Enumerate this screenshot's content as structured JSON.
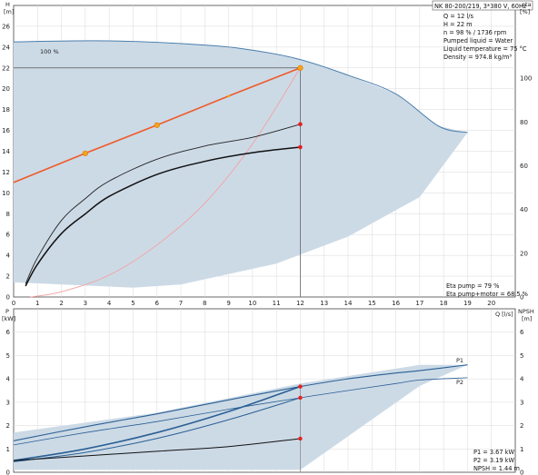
{
  "pump": {
    "header": "NK 80-200/219, 3*380 V, 60Hz",
    "info": [
      "Q = 12 l/s",
      "H = 22 m",
      "n = 98 % / 1736 rpm",
      "Pumped liquid = Water",
      "Liquid temperature = 75 °C",
      "Density = 974.8 kg/m³"
    ],
    "eta_info": [
      "Eta pump = 79 %",
      "Eta pump+motor = 68.5 %"
    ],
    "power_info": [
      "P1 = 3.67 kW",
      "P2 = 3.19 kW",
      "NPSH = 1.44 m"
    ],
    "curve_100_label": "100 %",
    "p1_label": "P1",
    "p2_label": "P2"
  },
  "colors": {
    "envelope_fill": "#ccdae6",
    "envelope_edge": "#4a7eac",
    "system_line": "#f05a28",
    "system_curve": "#f5a0a0",
    "marker": "#f7a21b",
    "op_point": "#e81f1f",
    "power_curve": "#2a5f94",
    "grid": "#d9d9d9"
  },
  "chart_data": [
    {
      "type": "line",
      "name": "head-efficiency",
      "ylabel_left": "H\n[m]",
      "ylabel_right": "eta\n[%]",
      "xlabel": "Q [l/s]",
      "xlim": [
        0,
        21
      ],
      "ylim": [
        0,
        28
      ],
      "xticks": [
        0,
        1,
        2,
        3,
        4,
        5,
        6,
        7,
        8,
        9,
        10,
        11,
        12,
        13,
        14,
        15,
        16,
        17,
        18,
        19,
        20
      ],
      "yticks_left": [
        0,
        2,
        4,
        6,
        8,
        10,
        12,
        14,
        16,
        18,
        20,
        22,
        24,
        26
      ],
      "yticks_right": [
        0,
        20,
        40,
        60,
        80,
        100
      ],
      "eta_scale_max": 133.3,
      "envelope_top": [
        [
          0,
          24.5
        ],
        [
          4,
          24.6
        ],
        [
          8,
          24.2
        ],
        [
          10,
          23.7
        ],
        [
          12,
          22.8
        ],
        [
          14,
          21.3
        ],
        [
          16,
          19.5
        ],
        [
          17.8,
          16.4
        ],
        [
          19,
          15.8
        ]
      ],
      "envelope_bottom": [
        [
          19,
          15.8
        ],
        [
          17,
          9.6
        ],
        [
          14,
          5.8
        ],
        [
          11,
          3.2
        ],
        [
          7,
          1.2
        ],
        [
          5,
          0.9
        ],
        [
          0,
          1.4
        ]
      ],
      "series": [
        {
          "name": "",
          "kind": "system-line",
          "x": [
            0,
            3,
            6,
            9,
            12
          ],
          "y": [
            11,
            13.8,
            16.5,
            19.3,
            22
          ]
        },
        {
          "name": "",
          "kind": "system-curve",
          "x": [
            0.7,
            2,
            4,
            6,
            8,
            10,
            12
          ],
          "y": [
            0,
            0.5,
            2.1,
            5.0,
            9.0,
            14.7,
            22
          ]
        },
        {
          "name": "",
          "kind": "eta-pump",
          "x": [
            0.5,
            1,
            2,
            3,
            4,
            6,
            8,
            10,
            12
          ],
          "y": [
            6,
            18,
            35,
            45,
            53,
            63,
            69,
            73,
            79
          ]
        },
        {
          "name": "",
          "kind": "eta-pump-motor",
          "x": [
            0.5,
            1,
            2,
            3,
            4,
            6,
            8,
            10,
            12
          ],
          "y": [
            5,
            15,
            29,
            38,
            46,
            56,
            62,
            66,
            68.5
          ]
        }
      ],
      "markers": [
        3,
        6,
        12
      ],
      "operating_point": {
        "q": 12,
        "h": 22,
        "eta_pump": 79,
        "eta_pump_motor": 68.5
      }
    },
    {
      "type": "line",
      "name": "power-npsh",
      "ylabel_left": "P\n[kW]",
      "ylabel_right": "NPSH\n[m]",
      "xlim": [
        0,
        21
      ],
      "ylim": [
        0,
        7
      ],
      "yticks_left": [
        0,
        1,
        2,
        3,
        4,
        5,
        6
      ],
      "yticks_right": [
        0,
        1,
        2,
        3,
        4,
        5,
        6
      ],
      "envelope_top": [
        [
          0,
          1.7
        ],
        [
          6,
          2.55
        ],
        [
          12,
          3.8
        ],
        [
          17,
          4.6
        ],
        [
          19,
          4.6
        ]
      ],
      "envelope_bottom": [
        [
          19,
          4.6
        ],
        [
          17,
          3.7
        ],
        [
          12,
          0.1
        ],
        [
          0,
          0.1
        ]
      ],
      "series": [
        {
          "name": "P1",
          "x": [
            0,
            3,
            6,
            9,
            12,
            14,
            16,
            17,
            19
          ],
          "y": [
            1.35,
            1.95,
            2.5,
            3.1,
            3.67,
            4.0,
            4.25,
            4.35,
            4.6
          ]
        },
        {
          "name": "P2",
          "x": [
            0,
            3,
            6,
            9,
            12,
            14,
            16,
            17,
            19
          ],
          "y": [
            1.17,
            1.7,
            2.17,
            2.7,
            3.19,
            3.5,
            3.8,
            3.95,
            4.05
          ]
        },
        {
          "name": "",
          "kind": "p1-op",
          "x": [
            0,
            3,
            6,
            9,
            12
          ],
          "y": [
            0.5,
            1.0,
            1.7,
            2.6,
            3.67
          ]
        },
        {
          "name": "",
          "kind": "p2-op",
          "x": [
            0,
            3,
            6,
            9,
            12
          ],
          "y": [
            0.45,
            0.85,
            1.45,
            2.25,
            3.19
          ]
        },
        {
          "name": "",
          "kind": "npsh",
          "x": [
            0,
            3,
            6,
            9,
            12
          ],
          "y": [
            0.5,
            0.7,
            0.9,
            1.1,
            1.44
          ]
        }
      ],
      "operating_point": {
        "q": 12,
        "p1": 3.67,
        "p2": 3.19,
        "npsh": 1.44
      }
    }
  ]
}
